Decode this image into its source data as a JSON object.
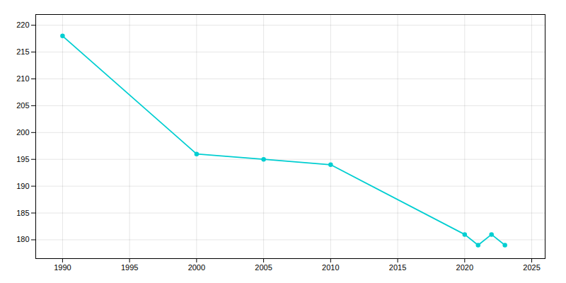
{
  "chart_data": {
    "type": "line",
    "x": [
      1990,
      2000,
      2005,
      2010,
      2020,
      2021,
      2022,
      2023
    ],
    "values": [
      218,
      196,
      195,
      194,
      181,
      179,
      181,
      179
    ],
    "color": "#00CED1",
    "marker": "o",
    "xlim": [
      1988,
      2026
    ],
    "ylim": [
      176.5,
      222
    ],
    "xticks": [
      1990,
      1995,
      2000,
      2005,
      2010,
      2015,
      2020,
      2025
    ],
    "yticks": [
      180,
      185,
      190,
      195,
      200,
      205,
      210,
      215,
      220
    ],
    "grid": true
  }
}
